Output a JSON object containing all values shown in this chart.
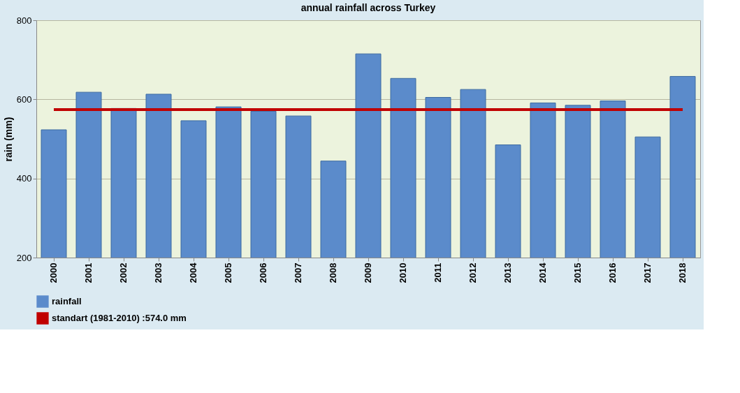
{
  "chart_data": {
    "type": "bar",
    "title": "annual rainfall across Turkey",
    "ylabel": "rain (mm)",
    "categories": [
      "2000",
      "2001",
      "2002",
      "2003",
      "2004",
      "2005",
      "2006",
      "2007",
      "2008",
      "2009",
      "2010",
      "2011",
      "2012",
      "2013",
      "2014",
      "2015",
      "2016",
      "2017",
      "2018"
    ],
    "series": [
      {
        "name": "rainfall",
        "color": "#5b8bcb",
        "values": [
          523,
          618,
          577,
          613,
          546,
          581,
          570,
          558,
          444,
          715,
          653,
          605,
          625,
          485,
          591,
          585,
          596,
          505,
          658
        ]
      }
    ],
    "ylim": [
      200,
      800
    ],
    "yticks": [
      200,
      400,
      600,
      800
    ],
    "grid": "y",
    "legend": "bottom left",
    "ref_lines": [
      {
        "axis": "y",
        "value": 574.0,
        "label": "standart (1981-2010) :574.0 mm",
        "color": "#c00000",
        "line_style": "solid"
      }
    ]
  }
}
